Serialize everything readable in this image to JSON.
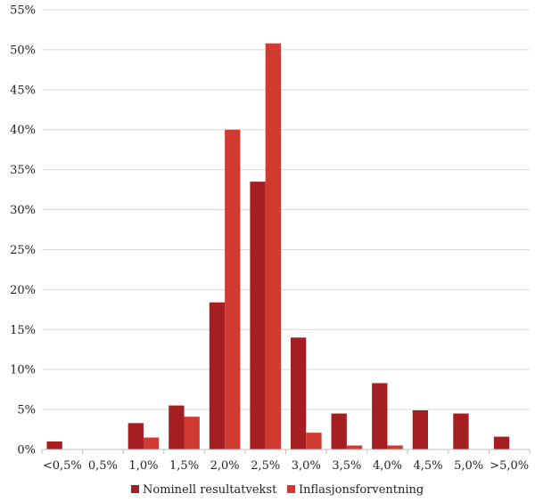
{
  "chart_data": {
    "type": "bar",
    "title": "",
    "xlabel": "",
    "ylabel": "",
    "categories": [
      "<0,5%",
      "0,5%",
      "1,0%",
      "1,5%",
      "2,0%",
      "2,5%",
      "3,0%",
      "3,5%",
      "4,0%",
      "4,5%",
      "5,0%",
      ">5,0%"
    ],
    "series": [
      {
        "name": "Nominell resultatvekst",
        "color": "#a51e22",
        "values": [
          1.0,
          0,
          3.3,
          5.5,
          18.4,
          33.5,
          14.0,
          4.5,
          8.3,
          4.9,
          4.5,
          1.6
        ]
      },
      {
        "name": "Inflasjonsforventning",
        "color": "#d13a30",
        "values": [
          0,
          0,
          1.5,
          4.1,
          40.0,
          50.8,
          2.1,
          0.5,
          0.5,
          0,
          0,
          0
        ]
      }
    ],
    "ylim": [
      0,
      55
    ],
    "yticks": [
      0,
      5,
      10,
      15,
      20,
      25,
      30,
      35,
      40,
      45,
      50,
      55
    ],
    "ytick_suffix": "%",
    "grid": true,
    "legend": "bottom"
  }
}
